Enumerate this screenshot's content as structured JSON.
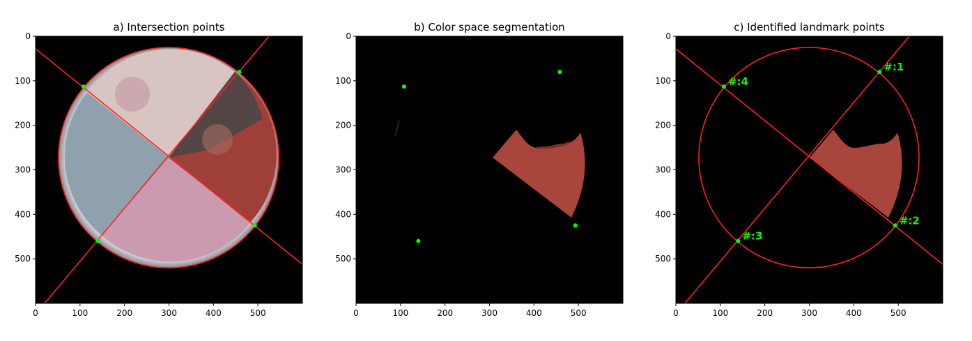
{
  "panels": [
    {
      "title": "a) Intersection points",
      "x_ticks": [
        "0",
        "100",
        "200",
        "300",
        "400",
        "500"
      ],
      "y_ticks": [
        "0",
        "100",
        "200",
        "300",
        "400",
        "500"
      ]
    },
    {
      "title": "b) Color space segmentation",
      "x_ticks": [
        "0",
        "100",
        "200",
        "300",
        "400",
        "500"
      ],
      "y_ticks": [
        "0",
        "100",
        "200",
        "300",
        "400",
        "500"
      ]
    },
    {
      "title": "c) Identified landmark points",
      "x_ticks": [
        "0",
        "100",
        "200",
        "300",
        "400",
        "500"
      ],
      "y_ticks": [
        "0",
        "100",
        "200",
        "300",
        "400",
        "500"
      ]
    }
  ],
  "landmarks": [
    {
      "label": "#:1",
      "x": 458,
      "y": 80
    },
    {
      "label": "#:2",
      "x": 493,
      "y": 425
    },
    {
      "label": "#:3",
      "x": 140,
      "y": 460
    },
    {
      "label": "#:4",
      "x": 108,
      "y": 113
    }
  ],
  "colors": {
    "line": "#ff2020",
    "point": "#00ff00",
    "background": "#000000"
  }
}
